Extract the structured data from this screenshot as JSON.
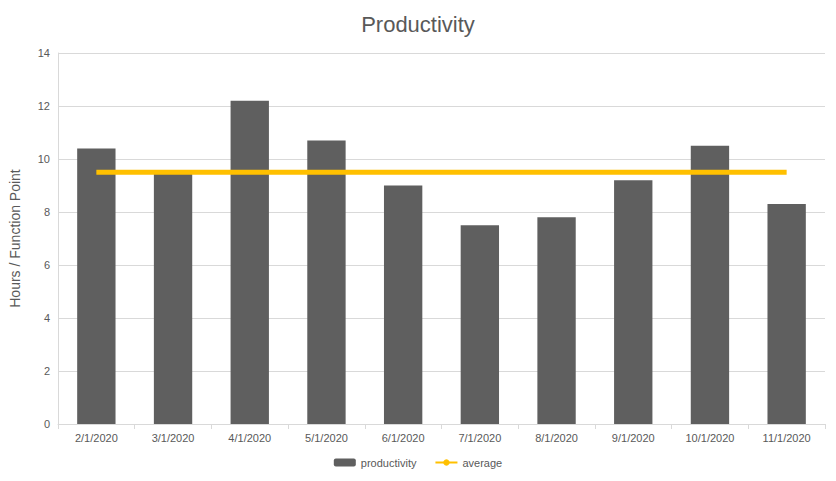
{
  "chart_data": {
    "type": "bar",
    "title": "Productivity",
    "y_label": "Hours / Function Point",
    "categories": [
      "2/1/2020",
      "3/1/2020",
      "4/1/2020",
      "5/1/2020",
      "6/1/2020",
      "7/1/2020",
      "8/1/2020",
      "9/1/2020",
      "10/1/2020",
      "11/1/2020"
    ],
    "series": [
      {
        "name": "productivity",
        "type": "bar",
        "color": "#5f5f5f",
        "values": [
          10.4,
          9.5,
          12.2,
          10.7,
          9.0,
          7.5,
          7.8,
          9.2,
          10.5,
          8.3
        ]
      },
      {
        "name": "average",
        "type": "line",
        "color": "#ffc000",
        "values": [
          9.5,
          9.5,
          9.5,
          9.5,
          9.5,
          9.5,
          9.5,
          9.5,
          9.5,
          9.5
        ]
      }
    ],
    "ylim": [
      0,
      14
    ],
    "yticks": [
      0,
      2,
      4,
      6,
      8,
      10,
      12,
      14
    ],
    "grid": true,
    "legend": "bottom"
  }
}
